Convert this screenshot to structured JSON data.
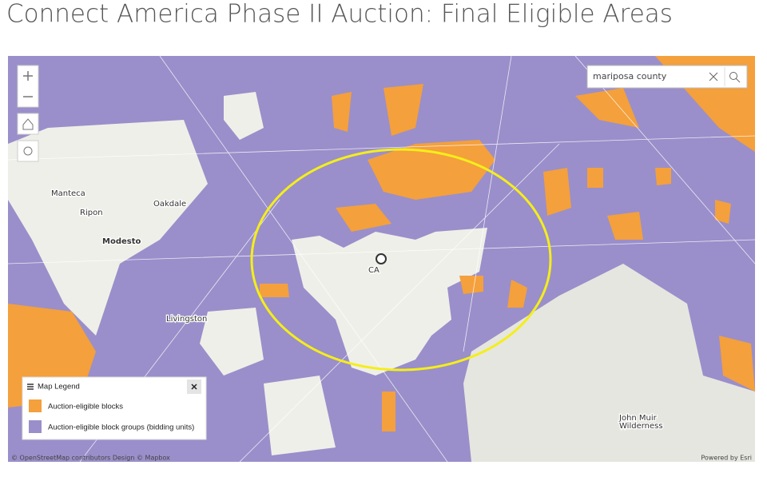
{
  "header": {
    "title": "Connect America Phase II Auction: Final Eligible Areas"
  },
  "search": {
    "value": "mariposa county"
  },
  "legend": {
    "title": "Map Legend",
    "items": [
      {
        "label": "Auction-eligible blocks",
        "color": "#f4a03c"
      },
      {
        "label": "Auction-eligible block groups (bidding units)",
        "color": "#9a8fca"
      }
    ]
  },
  "map": {
    "labels": [
      "Manteca",
      "Ripon",
      "Oakdale",
      "Modesto",
      "Livingston",
      "CA",
      "John Muir",
      "Wilderness"
    ]
  },
  "footer": {
    "attribution": "© OpenStreetMap contributors Design © Mapbox",
    "powered_by": "Powered by Esri"
  }
}
